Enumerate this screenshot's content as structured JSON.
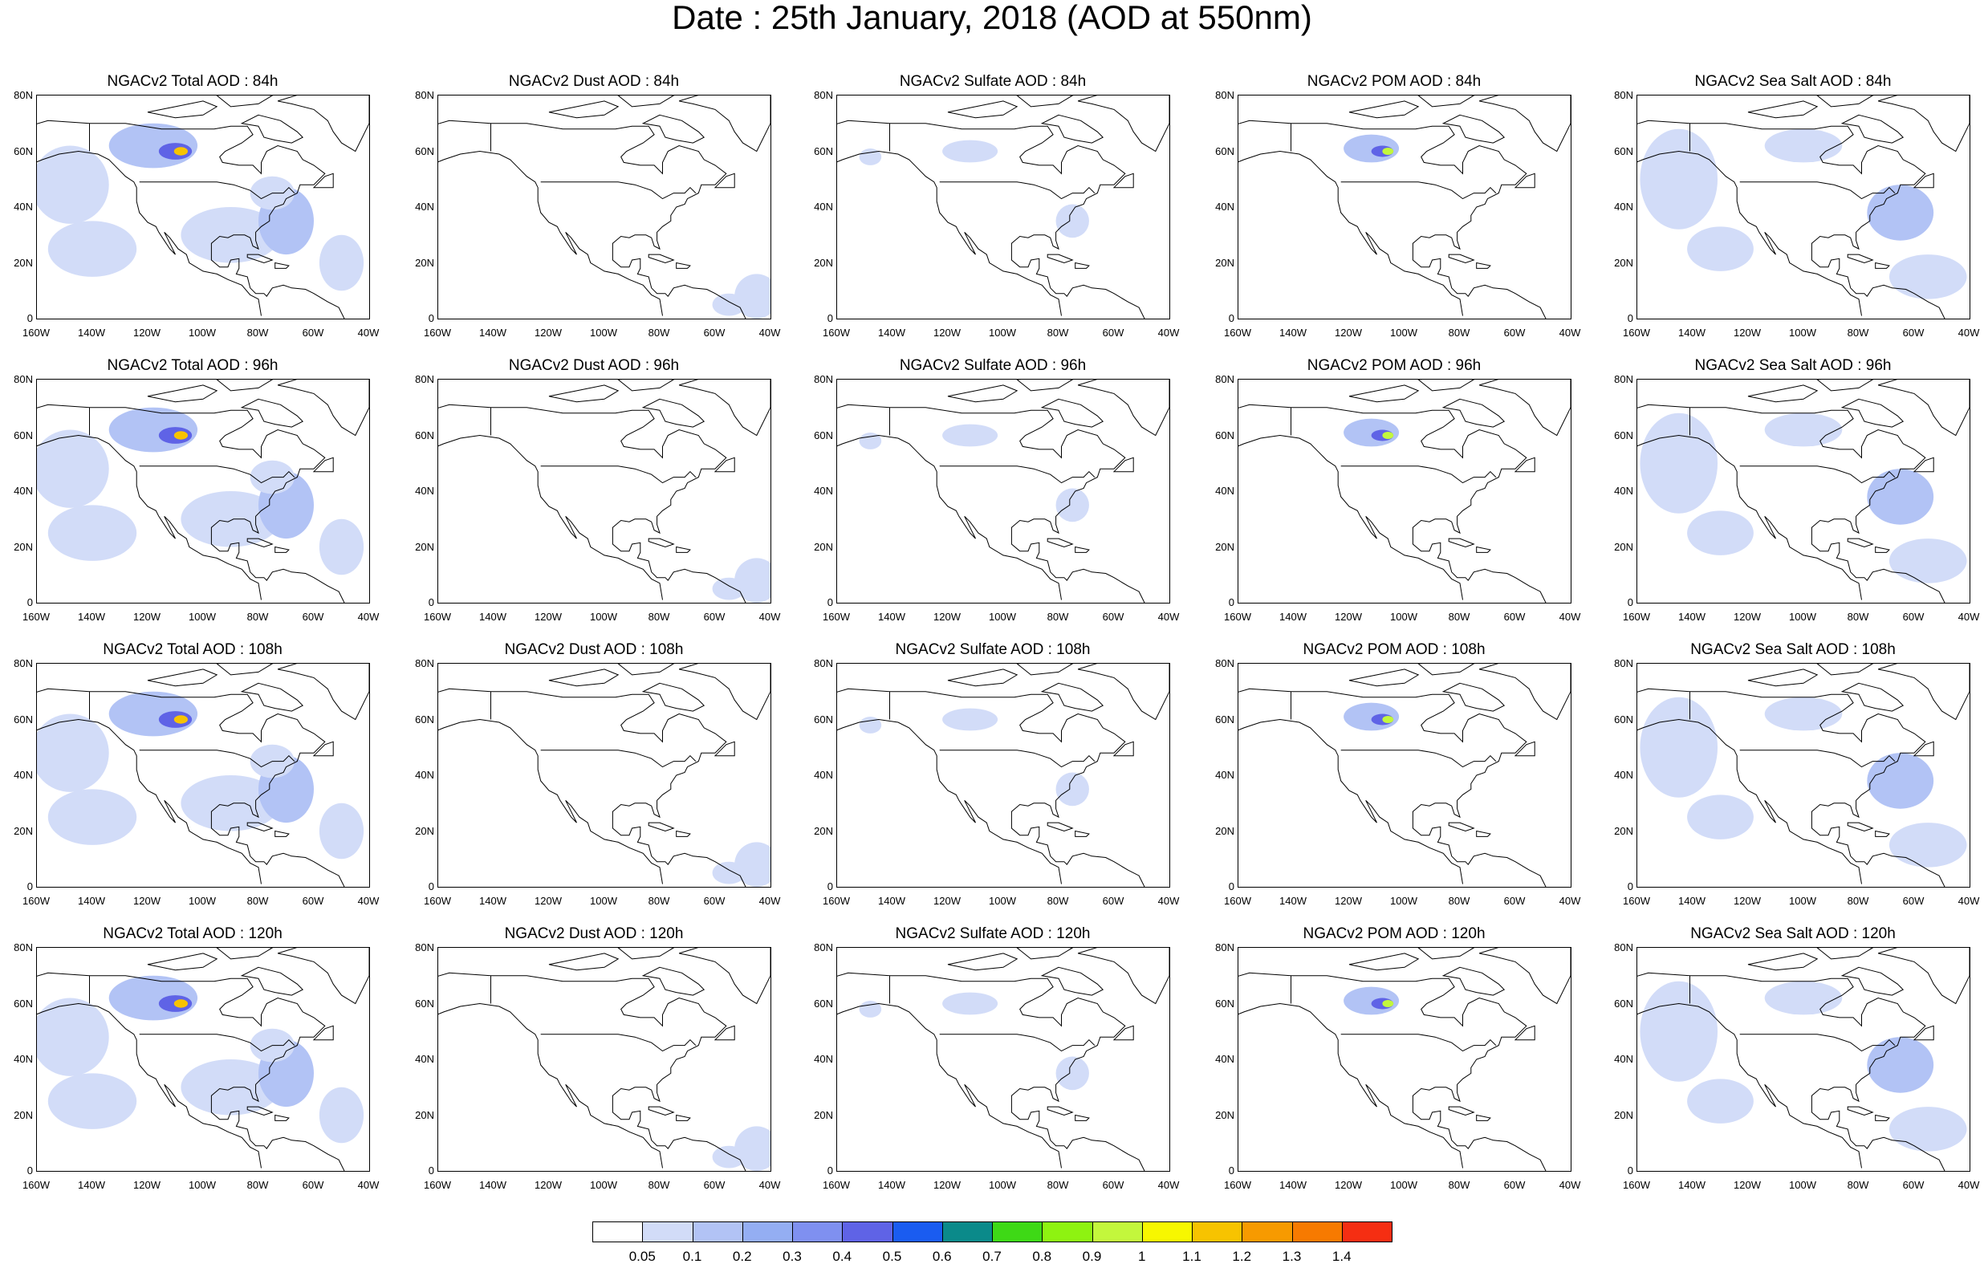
{
  "title": "Date : 25th January, 2018 (AOD at 550nm)",
  "x_ticks": [
    "160W",
    "140W",
    "120W",
    "100W",
    "80W",
    "60W",
    "40W"
  ],
  "y_ticks": [
    "0",
    "20N",
    "40N",
    "60N",
    "80N"
  ],
  "species": [
    {
      "id": "total",
      "label": "NGACv2 Total AOD"
    },
    {
      "id": "dust",
      "label": "NGACv2 Dust AOD"
    },
    {
      "id": "sulfate",
      "label": "NGACv2 Sulfate AOD"
    },
    {
      "id": "pom",
      "label": "NGACv2 POM AOD"
    },
    {
      "id": "seasalt",
      "label": "NGACv2 Sea Salt AOD"
    }
  ],
  "panels": [
    {
      "title": "NGACv2 Total AOD : 84h"
    },
    {
      "title": "NGACv2 Dust AOD : 84h"
    },
    {
      "title": "NGACv2 Sulfate AOD : 84h"
    },
    {
      "title": "NGACv2 POM AOD : 84h"
    },
    {
      "title": "NGACv2 Sea Salt AOD : 84h"
    },
    {
      "title": "NGACv2 Total AOD : 96h"
    },
    {
      "title": "NGACv2 Dust AOD : 96h"
    },
    {
      "title": "NGACv2 Sulfate AOD : 96h"
    },
    {
      "title": "NGACv2 POM AOD : 96h"
    },
    {
      "title": "NGACv2 Sea Salt AOD : 96h"
    },
    {
      "title": "NGACv2 Total AOD : 108h"
    },
    {
      "title": "NGACv2 Dust AOD : 108h"
    },
    {
      "title": "NGACv2 Sulfate AOD : 108h"
    },
    {
      "title": "NGACv2 POM AOD : 108h"
    },
    {
      "title": "NGACv2 Sea Salt AOD : 108h"
    },
    {
      "title": "NGACv2 Total AOD : 120h"
    },
    {
      "title": "NGACv2 Dust AOD : 120h"
    },
    {
      "title": "NGACv2 Sulfate AOD : 120h"
    },
    {
      "title": "NGACv2 POM AOD : 120h"
    },
    {
      "title": "NGACv2 Sea Salt  AOD : 120h"
    }
  ],
  "colorbar": {
    "labels": [
      "0.05",
      "0.1",
      "0.2",
      "0.3",
      "0.4",
      "0.5",
      "0.6",
      "0.7",
      "0.8",
      "0.9",
      "1",
      "1.1",
      "1.2",
      "1.3",
      "1.4"
    ],
    "colors": [
      "#ffffff",
      "#d2dcf8",
      "#b2c3f5",
      "#94aef3",
      "#7f90f0",
      "#5f63e6",
      "#1a5cf0",
      "#0b8a8a",
      "#3ed916",
      "#8ef311",
      "#c3f73c",
      "#f7f700",
      "#f7c300",
      "#f79a00",
      "#f77a00",
      "#f52e12"
    ]
  }
}
